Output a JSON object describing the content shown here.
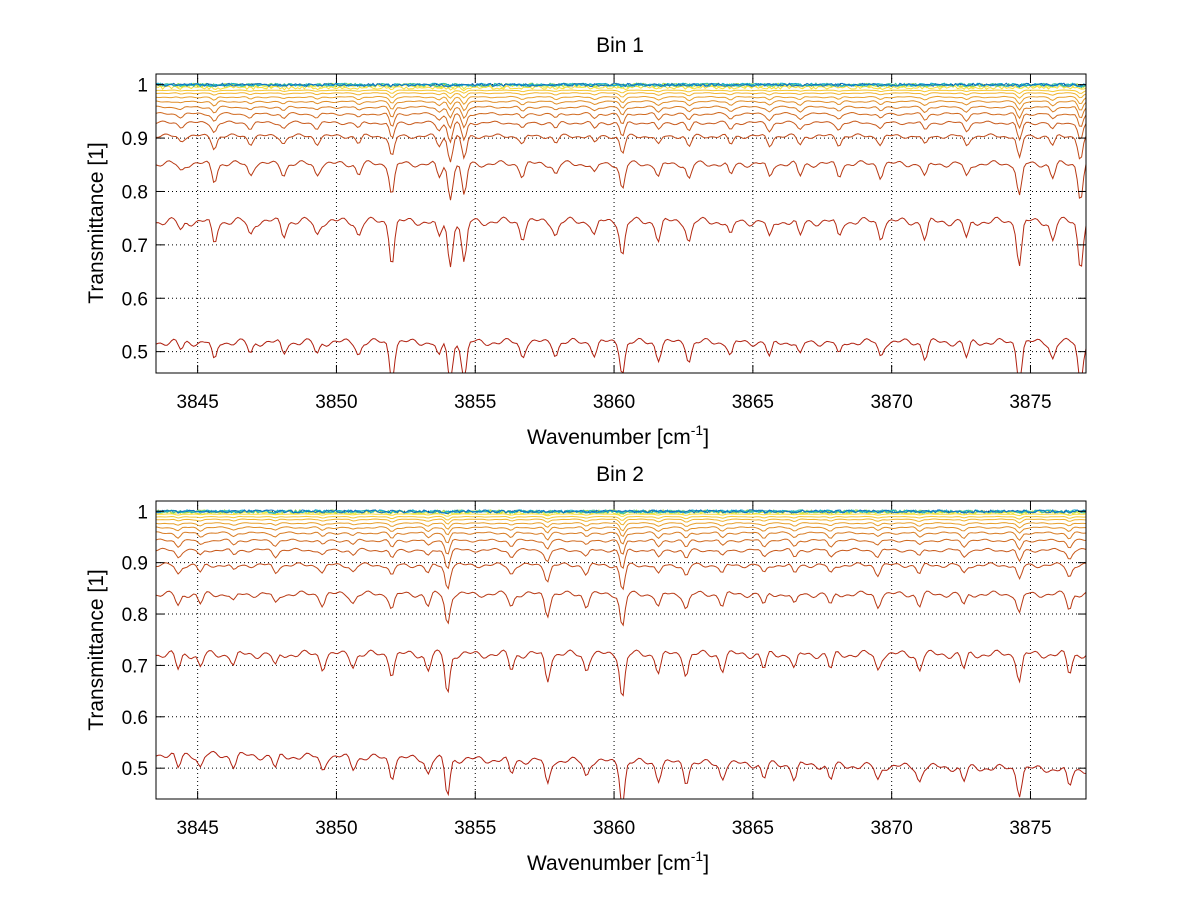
{
  "chart_data": [
    {
      "type": "line",
      "title": "Bin 1",
      "xlabel": "Wavenumber [cm",
      "xlabel_sup": "-1",
      "xlabel_end": "]",
      "ylabel": "Transmittance [1]",
      "xlim": [
        3843.5,
        3877.0
      ],
      "ylim": [
        0.46,
        1.02
      ],
      "xticks": [
        3845,
        3850,
        3855,
        3860,
        3865,
        3870,
        3875
      ],
      "yticks": [
        0.5,
        0.6,
        0.7,
        0.8,
        0.9,
        1
      ],
      "ytick_labels": [
        "0.5",
        "0.6",
        "0.7",
        "0.8",
        "0.9",
        "1"
      ],
      "grid": true,
      "absorption_lines": [
        {
          "x": 3844.4,
          "depth": 0.2
        },
        {
          "x": 3845.6,
          "depth": 0.5
        },
        {
          "x": 3846.9,
          "depth": 0.3
        },
        {
          "x": 3848.1,
          "depth": 0.3
        },
        {
          "x": 3849.3,
          "depth": 0.3
        },
        {
          "x": 3850.8,
          "depth": 0.3
        },
        {
          "x": 3852.0,
          "depth": 0.9
        },
        {
          "x": 3853.7,
          "depth": 0.4
        },
        {
          "x": 3854.1,
          "depth": 1.0
        },
        {
          "x": 3854.6,
          "depth": 0.95
        },
        {
          "x": 3856.7,
          "depth": 0.35
        },
        {
          "x": 3857.9,
          "depth": 0.3
        },
        {
          "x": 3859.3,
          "depth": 0.3
        },
        {
          "x": 3860.3,
          "depth": 0.75
        },
        {
          "x": 3861.6,
          "depth": 0.4
        },
        {
          "x": 3862.7,
          "depth": 0.45
        },
        {
          "x": 3864.2,
          "depth": 0.35
        },
        {
          "x": 3865.6,
          "depth": 0.4
        },
        {
          "x": 3866.7,
          "depth": 0.35
        },
        {
          "x": 3868.1,
          "depth": 0.35
        },
        {
          "x": 3869.6,
          "depth": 0.35
        },
        {
          "x": 3871.2,
          "depth": 0.4
        },
        {
          "x": 3872.7,
          "depth": 0.4
        },
        {
          "x": 3874.6,
          "depth": 0.95
        },
        {
          "x": 3875.8,
          "depth": 0.4
        },
        {
          "x": 3876.8,
          "depth": 1.0
        }
      ],
      "series": [
        {
          "baseline": 0.525,
          "amplitude": 0.075,
          "color": "#b02010"
        },
        {
          "baseline": 0.752,
          "amplitude": 0.085,
          "color": "#b42a12"
        },
        {
          "baseline": 0.858,
          "amplitude": 0.065,
          "color": "#b83a14"
        },
        {
          "baseline": 0.908,
          "amplitude": 0.045,
          "color": "#c04a18"
        },
        {
          "baseline": 0.932,
          "amplitude": 0.035,
          "color": "#c85a1c"
        },
        {
          "baseline": 0.948,
          "amplitude": 0.028,
          "color": "#d06a20"
        },
        {
          "baseline": 0.96,
          "amplitude": 0.022,
          "color": "#d87c24"
        },
        {
          "baseline": 0.97,
          "amplitude": 0.017,
          "color": "#e08e28"
        },
        {
          "baseline": 0.978,
          "amplitude": 0.013,
          "color": "#e8a02c"
        },
        {
          "baseline": 0.985,
          "amplitude": 0.009,
          "color": "#f0b430"
        },
        {
          "baseline": 0.99,
          "amplitude": 0.006,
          "color": "#f6c834"
        },
        {
          "baseline": 0.995,
          "amplitude": 0.004,
          "color": "#fadc38"
        },
        {
          "baseline": 0.998,
          "amplitude": 0.003,
          "color": "#e8e83c"
        },
        {
          "baseline": 1.0,
          "amplitude": 0.002,
          "color": "#a0d850"
        },
        {
          "baseline": 1.0,
          "amplitude": 0.002,
          "color": "#40c0a0"
        },
        {
          "baseline": 1.0,
          "amplitude": 0.002,
          "color": "#10a8d0"
        },
        {
          "baseline": 1.0,
          "amplitude": 0.002,
          "color": "#1070c0"
        }
      ]
    },
    {
      "type": "line",
      "title": "Bin 2",
      "xlabel": "Wavenumber [cm",
      "xlabel_sup": "-1",
      "xlabel_end": "]",
      "ylabel": "Transmittance [1]",
      "xlim": [
        3843.5,
        3877.0
      ],
      "ylim": [
        0.44,
        1.02
      ],
      "xticks": [
        3845,
        3850,
        3855,
        3860,
        3865,
        3870,
        3875
      ],
      "yticks": [
        0.5,
        0.6,
        0.7,
        0.8,
        0.9,
        1
      ],
      "ytick_labels": [
        "0.5",
        "0.6",
        "0.7",
        "0.8",
        "0.9",
        "1"
      ],
      "grid": true,
      "absorption_lines": [
        {
          "x": 3844.3,
          "depth": 0.35
        },
        {
          "x": 3845.1,
          "depth": 0.3
        },
        {
          "x": 3846.3,
          "depth": 0.25
        },
        {
          "x": 3847.8,
          "depth": 0.3
        },
        {
          "x": 3849.5,
          "depth": 0.3
        },
        {
          "x": 3850.6,
          "depth": 0.25
        },
        {
          "x": 3852.0,
          "depth": 0.45
        },
        {
          "x": 3853.3,
          "depth": 0.35
        },
        {
          "x": 3854.0,
          "depth": 0.9
        },
        {
          "x": 3856.3,
          "depth": 0.35
        },
        {
          "x": 3857.6,
          "depth": 0.6
        },
        {
          "x": 3859.0,
          "depth": 0.35
        },
        {
          "x": 3860.3,
          "depth": 1.0
        },
        {
          "x": 3861.6,
          "depth": 0.4
        },
        {
          "x": 3862.6,
          "depth": 0.45
        },
        {
          "x": 3863.9,
          "depth": 0.35
        },
        {
          "x": 3865.4,
          "depth": 0.35
        },
        {
          "x": 3866.5,
          "depth": 0.35
        },
        {
          "x": 3867.8,
          "depth": 0.35
        },
        {
          "x": 3869.5,
          "depth": 0.35
        },
        {
          "x": 3871.0,
          "depth": 0.35
        },
        {
          "x": 3872.6,
          "depth": 0.35
        },
        {
          "x": 3874.6,
          "depth": 0.6
        },
        {
          "x": 3876.4,
          "depth": 0.45
        }
      ],
      "series": [
        {
          "baseline": 0.52,
          "amplitude": 0.08,
          "color": "#b02010",
          "tilt": -0.06
        },
        {
          "baseline": 0.73,
          "amplitude": 0.085,
          "color": "#b42a12",
          "tilt": 0.0
        },
        {
          "baseline": 0.845,
          "amplitude": 0.065,
          "color": "#b83a14",
          "tilt": 0.0
        },
        {
          "baseline": 0.9,
          "amplitude": 0.05,
          "color": "#c04a18",
          "tilt": 0.0
        },
        {
          "baseline": 0.928,
          "amplitude": 0.038,
          "color": "#c85a1c",
          "tilt": 0.0
        },
        {
          "baseline": 0.946,
          "amplitude": 0.03,
          "color": "#d06a20",
          "tilt": 0.0
        },
        {
          "baseline": 0.96,
          "amplitude": 0.024,
          "color": "#d87c24",
          "tilt": 0.0
        },
        {
          "baseline": 0.97,
          "amplitude": 0.018,
          "color": "#e08e28",
          "tilt": 0.0
        },
        {
          "baseline": 0.978,
          "amplitude": 0.014,
          "color": "#e8a02c",
          "tilt": 0.0
        },
        {
          "baseline": 0.985,
          "amplitude": 0.01,
          "color": "#f0b430",
          "tilt": 0.0
        },
        {
          "baseline": 0.99,
          "amplitude": 0.007,
          "color": "#f6c834",
          "tilt": 0.0
        },
        {
          "baseline": 0.995,
          "amplitude": 0.005,
          "color": "#fadc38",
          "tilt": 0.0
        },
        {
          "baseline": 0.998,
          "amplitude": 0.003,
          "color": "#e8e83c",
          "tilt": 0.0
        },
        {
          "baseline": 1.0,
          "amplitude": 0.002,
          "color": "#a0d850",
          "tilt": 0.0
        },
        {
          "baseline": 1.0,
          "amplitude": 0.002,
          "color": "#40c0a0",
          "tilt": 0.0
        },
        {
          "baseline": 1.0,
          "amplitude": 0.002,
          "color": "#10a8d0",
          "tilt": 0.0
        },
        {
          "baseline": 1.0,
          "amplitude": 0.002,
          "color": "#1070c0",
          "tilt": 0.0
        }
      ]
    }
  ]
}
